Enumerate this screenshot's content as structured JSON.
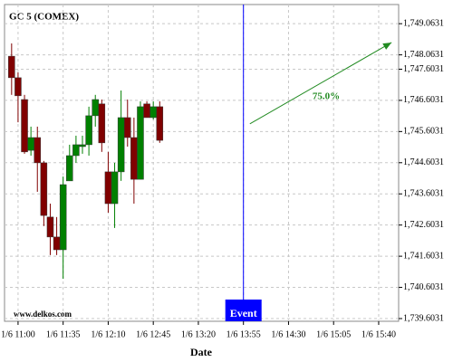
{
  "chart_data": {
    "type": "candlestick",
    "title": "GC 5 (COMEX)",
    "watermark": "www.delkos.com",
    "x_label": "Date",
    "x": [
      655,
      660,
      665,
      670,
      675,
      680,
      685,
      690,
      695,
      700,
      705,
      710,
      715,
      720,
      725,
      730,
      735,
      740,
      745,
      750,
      755,
      760,
      765,
      770
    ],
    "open": [
      1748.02,
      1747.33,
      1746.63,
      1745.0,
      1745.41,
      1744.6,
      1742.86,
      1742.22,
      1741.81,
      1744.02,
      1744.83,
      1745.12,
      1745.18,
      1746.11,
      1746.49,
      1744.31,
      1743.29,
      1744.31,
      1746.05,
      1745.41,
      1744.07,
      1746.49,
      1746.05,
      1746.4
    ],
    "high": [
      1748.43,
      1747.5,
      1746.78,
      1745.76,
      1745.76,
      1744.66,
      1743.29,
      1742.86,
      1744.16,
      1745.18,
      1745.47,
      1745.47,
      1746.4,
      1746.78,
      1746.63,
      1744.95,
      1744.6,
      1746.92,
      1746.63,
      1746.05,
      1746.57,
      1746.57,
      1746.57,
      1746.57
    ],
    "low": [
      1746.78,
      1745.9,
      1744.89,
      1744.83,
      1743.67,
      1742.57,
      1741.64,
      1741.64,
      1740.88,
      1744.02,
      1744.6,
      1744.89,
      1744.83,
      1745.76,
      1744.95,
      1743.0,
      1742.51,
      1744.02,
      1745.12,
      1743.29,
      1744.07,
      1746.05,
      1745.99,
      1745.24
    ],
    "close": [
      1747.33,
      1746.75,
      1744.95,
      1745.41,
      1744.6,
      1742.91,
      1742.22,
      1741.81,
      1743.9,
      1744.83,
      1745.18,
      1745.18,
      1746.11,
      1746.63,
      1745.24,
      1743.29,
      1744.31,
      1746.05,
      1745.41,
      1744.07,
      1746.4,
      1746.05,
      1746.4,
      1745.32
    ],
    "up_color": "#008000",
    "down_color": "#800000",
    "xlim": [
      649.5,
      955.5
    ],
    "xticks": [
      {
        "value": 660,
        "label": "1/6 11:00"
      },
      {
        "value": 695,
        "label": "1/6 11:35"
      },
      {
        "value": 730,
        "label": "1/6 12:10"
      },
      {
        "value": 765,
        "label": "1/6 12:45"
      },
      {
        "value": 800,
        "label": "1/6 13:20"
      },
      {
        "value": 835,
        "label": "1/6 13:55"
      },
      {
        "value": 870,
        "label": "1/6 14:30"
      },
      {
        "value": 905,
        "label": "1/6 15:05"
      },
      {
        "value": 940,
        "label": "1/6 15:40"
      }
    ],
    "ylim": [
      1739.516,
      1749.678
    ],
    "yticks": [
      {
        "value": 1739.6031,
        "label": "1,739.6031"
      },
      {
        "value": 1740.6031,
        "label": "1,740.6031"
      },
      {
        "value": 1741.6031,
        "label": "1,741.6031"
      },
      {
        "value": 1742.6031,
        "label": "1,742.6031"
      },
      {
        "value": 1743.6031,
        "label": "1,743.6031"
      },
      {
        "value": 1744.6031,
        "label": "1,744.6031"
      },
      {
        "value": 1745.6031,
        "label": "1,745.6031"
      },
      {
        "value": 1746.6031,
        "label": "1,746.6031"
      },
      {
        "value": 1747.6031,
        "label": "1,747.6031"
      },
      {
        "value": 1748.0631,
        "label": "1,748.0631"
      },
      {
        "value": 1749.0631,
        "label": "1,749.0631"
      }
    ],
    "grid": true,
    "event": {
      "x": 835,
      "label": "Event",
      "color": "#0000ff"
    },
    "arrow": {
      "x": [
        840,
        950
      ],
      "y": [
        1745.85,
        1748.46
      ],
      "label": "75.0%",
      "color": "#228b22"
    }
  }
}
